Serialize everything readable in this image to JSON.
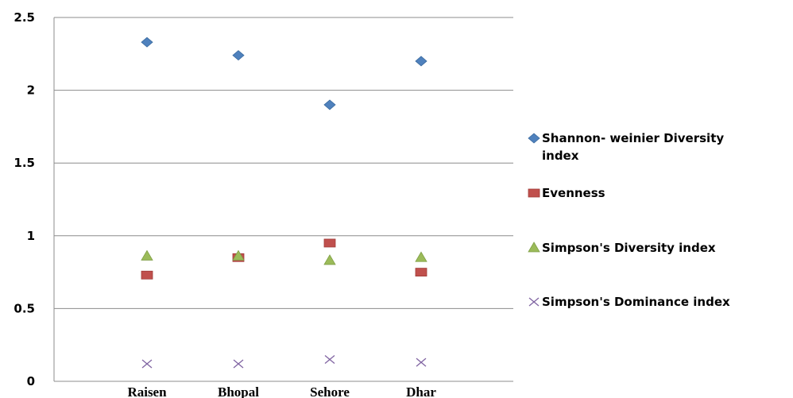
{
  "chart_data": {
    "type": "scatter",
    "categories": [
      "Raisen",
      "Bhopal",
      "Sehore",
      "Dhar"
    ],
    "ylim": [
      0,
      2.5
    ],
    "yticks": [
      "0",
      "0.5",
      "1",
      "1.5",
      "2",
      "2.5"
    ],
    "grid": true,
    "legend_position": "right",
    "series": [
      {
        "name": "Shannon- weinier Diversity index",
        "marker": "diamond",
        "color": "#4f81bd",
        "values": [
          2.33,
          2.24,
          1.9,
          2.2
        ]
      },
      {
        "name": "Evenness",
        "marker": "square",
        "color": "#c0504d",
        "values": [
          0.73,
          0.85,
          0.95,
          0.75
        ]
      },
      {
        "name": "Simpson's Diversity index",
        "marker": "triangle",
        "color": "#9bbb59",
        "values": [
          0.86,
          0.86,
          0.83,
          0.85
        ]
      },
      {
        "name": "Simpson's Dominance index",
        "marker": "x",
        "color": "#8064a2",
        "values": [
          0.12,
          0.12,
          0.15,
          0.13
        ]
      }
    ]
  }
}
